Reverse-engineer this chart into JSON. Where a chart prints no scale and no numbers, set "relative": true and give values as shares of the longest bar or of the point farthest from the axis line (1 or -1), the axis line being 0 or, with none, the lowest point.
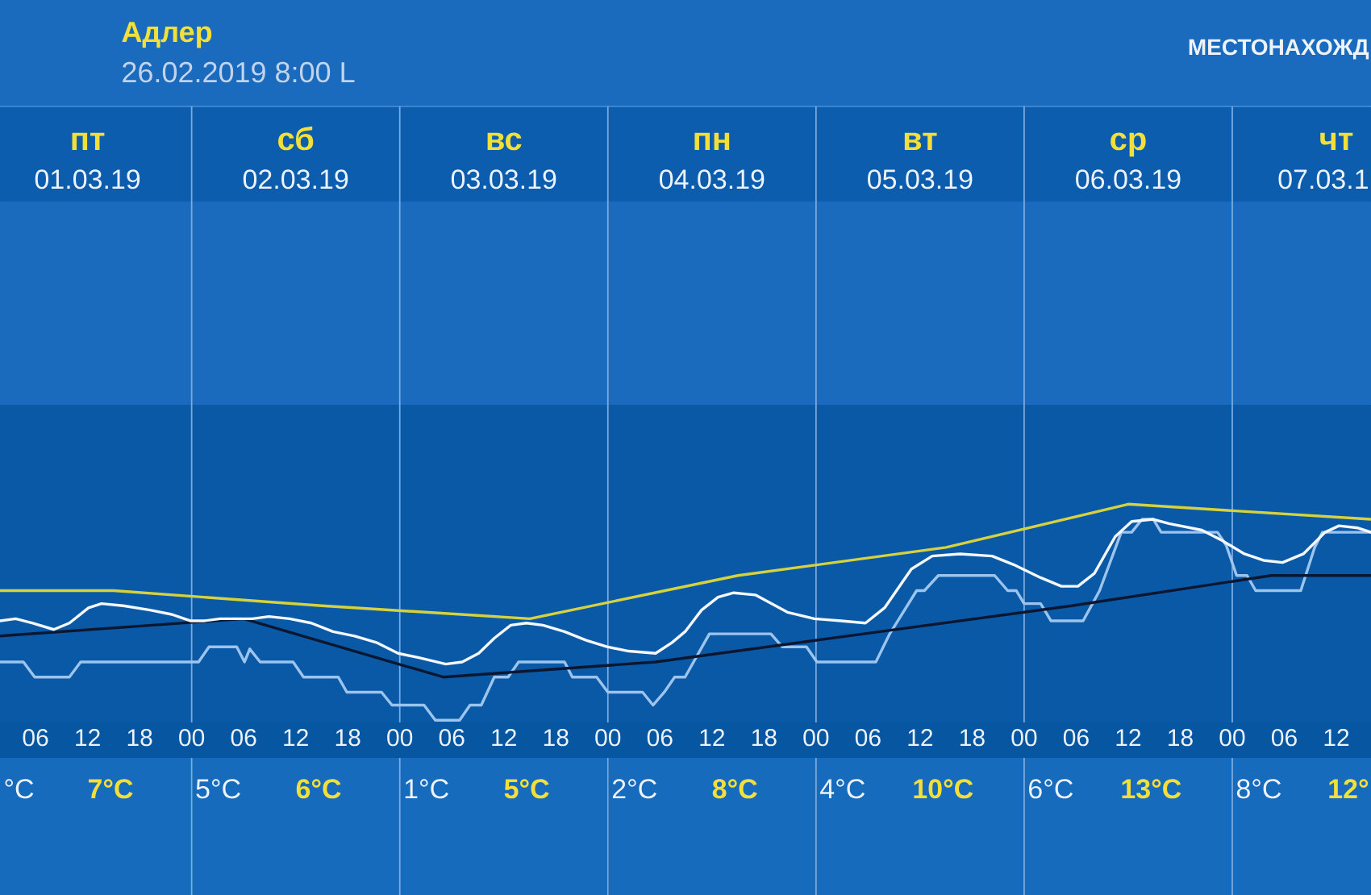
{
  "chart_data": {
    "type": "line",
    "title": "Адлер",
    "subtitle": "26.02.2019 8:00 L",
    "relative": true,
    "xlim": [
      1.9,
      160
    ],
    "xticks": [
      {
        "value": 6,
        "label": "06"
      },
      {
        "value": 12,
        "label": "12"
      },
      {
        "value": 18,
        "label": "18"
      },
      {
        "value": 24,
        "label": "00"
      },
      {
        "value": 30,
        "label": "06"
      },
      {
        "value": 36,
        "label": "12"
      },
      {
        "value": 42,
        "label": "18"
      },
      {
        "value": 48,
        "label": "00"
      },
      {
        "value": 54,
        "label": "06"
      },
      {
        "value": 60,
        "label": "12"
      },
      {
        "value": 66,
        "label": "18"
      },
      {
        "value": 72,
        "label": "00"
      },
      {
        "value": 78,
        "label": "06"
      },
      {
        "value": 84,
        "label": "12"
      },
      {
        "value": 90,
        "label": "18"
      },
      {
        "value": 96,
        "label": "00"
      },
      {
        "value": 102,
        "label": "06"
      },
      {
        "value": 108,
        "label": "12"
      },
      {
        "value": 114,
        "label": "18"
      },
      {
        "value": 120,
        "label": "00"
      },
      {
        "value": 126,
        "label": "06"
      },
      {
        "value": 132,
        "label": "12"
      },
      {
        "value": 138,
        "label": "18"
      },
      {
        "value": 144,
        "label": "00"
      },
      {
        "value": 150,
        "label": "06"
      },
      {
        "value": 156,
        "label": "12"
      }
    ],
    "ref_lines": [
      {
        "axis": "x",
        "value": 24,
        "color": "#7aaae0"
      },
      {
        "axis": "x",
        "value": 48,
        "color": "#7aaae0"
      },
      {
        "axis": "x",
        "value": 72,
        "color": "#7aaae0"
      },
      {
        "axis": "x",
        "value": 96,
        "color": "#7aaae0"
      },
      {
        "axis": "x",
        "value": 120,
        "color": "#7aaae0"
      },
      {
        "axis": "x",
        "value": 144,
        "color": "#7aaae0"
      }
    ],
    "annotations": [
      "пт",
      "сб",
      "вс",
      "пн",
      "вт",
      "ср",
      "чт",
      "01.03.19",
      "02.03.19",
      "03.03.19",
      "04.03.19",
      "05.03.19",
      "06.03.19",
      "07.03.1",
      "°C",
      "7°C",
      "5°C",
      "6°C",
      "1°C",
      "5°C",
      "2°C",
      "8°C",
      "4°C",
      "10°C",
      "6°C",
      "13°C",
      "8°C",
      "12°",
      "МЕСТОНАХОЖД"
    ],
    "series": [
      {
        "color": "#9dc4ec",
        "x": [
          1.9,
          4.6,
          5.9,
          9.9,
          11.2,
          24.8,
          26.0,
          29.2,
          30.1,
          30.7,
          31.9,
          35.7,
          36.9,
          40.9,
          41.9,
          45.9,
          47.1,
          50.8,
          52.1,
          54.9,
          56.1,
          57.4,
          58.9,
          60.5,
          61.7,
          67.0,
          67.9,
          70.7,
          72.0,
          76.0,
          77.2,
          78.5,
          79.7,
          80.9,
          83.7,
          90.8,
          92.1,
          94.9,
          96.1,
          102.9,
          104.5,
          107.6,
          108.5,
          110.1,
          116.6,
          118.1,
          119.1,
          120.0,
          121.9,
          123.1,
          126.8,
          128.7,
          131.2,
          132.4,
          133.6,
          134.9,
          135.8,
          142.3,
          143.3,
          144.5,
          145.7,
          146.7,
          151.9,
          153.5,
          154.4,
          160
        ],
        "values": [
          0.27,
          0.27,
          0.2,
          0.2,
          0.27,
          0.27,
          0.34,
          0.34,
          0.27,
          0.33,
          0.27,
          0.27,
          0.2,
          0.2,
          0.13,
          0.13,
          0.07,
          0.07,
          0,
          0,
          0.07,
          0.07,
          0.2,
          0.2,
          0.27,
          0.27,
          0.2,
          0.2,
          0.13,
          0.13,
          0.07,
          0.13,
          0.2,
          0.2,
          0.4,
          0.4,
          0.34,
          0.34,
          0.27,
          0.27,
          0.4,
          0.6,
          0.6,
          0.67,
          0.67,
          0.6,
          0.6,
          0.54,
          0.54,
          0.46,
          0.46,
          0.6,
          0.87,
          0.87,
          0.93,
          0.93,
          0.87,
          0.87,
          0.81,
          0.67,
          0.67,
          0.6,
          0.6,
          0.8,
          0.87,
          0.87
        ]
      },
      {
        "color": "#0b1730",
        "x": [
          1.9,
          30,
          53,
          77.5,
          101.5,
          125.5,
          148.5,
          160
        ],
        "values": [
          0.39,
          0.47,
          0.2,
          0.27,
          0.4,
          0.53,
          0.67,
          0.67
        ]
      },
      {
        "color": "#f4f7fb",
        "x": [
          1.9,
          3.7,
          5.6,
          8.1,
          9.9,
          12.1,
          13.6,
          16.1,
          19.2,
          21.7,
          23.9,
          25.4,
          27.3,
          29.2,
          31.0,
          32.9,
          35.3,
          37.8,
          40.3,
          42.8,
          45.3,
          47.8,
          50.2,
          53.3,
          55.2,
          57.1,
          58.9,
          60.8,
          62.6,
          64.5,
          67.0,
          69.5,
          71.9,
          74.4,
          77.5,
          79.4,
          80.9,
          82.8,
          84.7,
          86.5,
          89.0,
          92.7,
          95.8,
          98.9,
          101.7,
          103.9,
          107.0,
          109.4,
          112.6,
          116.3,
          118.8,
          121.9,
          124.3,
          126.2,
          128.1,
          130.5,
          132.4,
          134.9,
          136.7,
          140.5,
          142.9,
          145.4,
          147.6,
          149.8,
          152.2,
          154.7,
          156.3,
          158.5,
          160
        ],
        "values": [
          0.46,
          0.47,
          0.45,
          0.42,
          0.45,
          0.52,
          0.54,
          0.53,
          0.51,
          0.49,
          0.46,
          0.46,
          0.47,
          0.47,
          0.47,
          0.48,
          0.47,
          0.45,
          0.41,
          0.39,
          0.36,
          0.31,
          0.29,
          0.26,
          0.27,
          0.31,
          0.38,
          0.44,
          0.45,
          0.44,
          0.41,
          0.37,
          0.34,
          0.32,
          0.31,
          0.36,
          0.41,
          0.51,
          0.57,
          0.59,
          0.58,
          0.5,
          0.47,
          0.46,
          0.45,
          0.52,
          0.7,
          0.76,
          0.77,
          0.76,
          0.72,
          0.66,
          0.62,
          0.62,
          0.68,
          0.85,
          0.92,
          0.93,
          0.91,
          0.88,
          0.83,
          0.77,
          0.74,
          0.73,
          0.77,
          0.87,
          0.9,
          0.89,
          0.87
        ]
      },
      {
        "color": "#d6d23e",
        "x": [
          1.9,
          15,
          39,
          63,
          87,
          111,
          132,
          160
        ],
        "values": [
          0.6,
          0.6,
          0.53,
          0.47,
          0.67,
          0.8,
          1,
          0.93
        ]
      }
    ]
  }
}
